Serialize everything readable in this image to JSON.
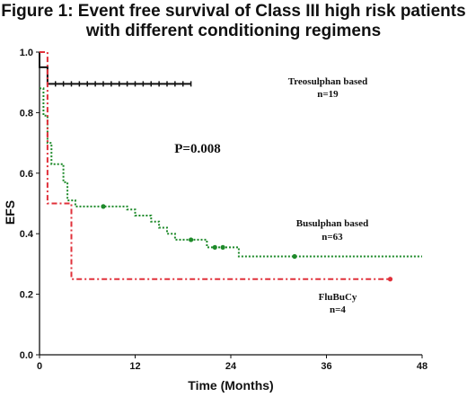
{
  "title_lines": [
    "Figure 1: Event free survival of Class III high risk patients",
    "with different conditioning regimens"
  ],
  "chart_data": {
    "type": "line",
    "title": "Figure 1: Event free survival of Class III high risk patients with different conditioning regimens",
    "xlabel": "Time (Months)",
    "ylabel": "EFS",
    "xlim": [
      0,
      48
    ],
    "ylim": [
      0,
      1.0
    ],
    "x_ticks": [
      0,
      12,
      24,
      36,
      48
    ],
    "y_ticks": [
      0.0,
      0.2,
      0.4,
      0.6,
      0.8,
      1.0
    ],
    "x_tick_labels": [
      "0",
      "12",
      "24",
      "36",
      "48"
    ],
    "y_tick_labels": [
      "0.0",
      "0.2",
      "0.4",
      "0.6",
      "0.8",
      "1.0"
    ],
    "grid": false,
    "p_value_text": "P=0.008",
    "series": [
      {
        "name": "Treosulphan based",
        "n_label": "n=19",
        "color": "#111111",
        "dash": "solid",
        "steps": [
          [
            0,
            1.0
          ],
          [
            0,
            0.95
          ],
          [
            1.0,
            0.95
          ],
          [
            1.0,
            0.895
          ],
          [
            19,
            0.895
          ]
        ],
        "censors": [
          [
            2,
            0.895
          ],
          [
            3,
            0.895
          ],
          [
            4,
            0.895
          ],
          [
            5,
            0.895
          ],
          [
            6,
            0.895
          ],
          [
            7,
            0.895
          ],
          [
            8,
            0.895
          ],
          [
            9,
            0.895
          ],
          [
            10,
            0.895
          ],
          [
            11,
            0.895
          ],
          [
            12,
            0.895
          ],
          [
            13,
            0.895
          ],
          [
            14,
            0.895
          ],
          [
            15,
            0.895
          ],
          [
            16,
            0.895
          ],
          [
            17,
            0.895
          ],
          [
            18,
            0.895
          ],
          [
            19,
            0.895
          ]
        ]
      },
      {
        "name": "Busulphan based",
        "n_label": "n=63",
        "color": "#1e8a2a",
        "dash": "dotted",
        "steps": [
          [
            0,
            0.88
          ],
          [
            0.5,
            0.88
          ],
          [
            0.5,
            0.79
          ],
          [
            1.0,
            0.79
          ],
          [
            1.0,
            0.7
          ],
          [
            1.5,
            0.7
          ],
          [
            1.5,
            0.63
          ],
          [
            3.0,
            0.63
          ],
          [
            3.0,
            0.57
          ],
          [
            3.5,
            0.57
          ],
          [
            3.5,
            0.51
          ],
          [
            4.5,
            0.51
          ],
          [
            4.5,
            0.49
          ],
          [
            11,
            0.49
          ],
          [
            11,
            0.48
          ],
          [
            12,
            0.48
          ],
          [
            12,
            0.46
          ],
          [
            14,
            0.46
          ],
          [
            14,
            0.44
          ],
          [
            15,
            0.44
          ],
          [
            15,
            0.42
          ],
          [
            16,
            0.42
          ],
          [
            16,
            0.4
          ],
          [
            17,
            0.4
          ],
          [
            17,
            0.38
          ],
          [
            21,
            0.38
          ],
          [
            21,
            0.355
          ],
          [
            25,
            0.355
          ],
          [
            25,
            0.325
          ],
          [
            48,
            0.325
          ]
        ],
        "censors": [
          [
            8,
            0.49
          ],
          [
            19,
            0.38
          ],
          [
            22,
            0.355
          ],
          [
            23,
            0.355
          ],
          [
            32,
            0.325
          ]
        ]
      },
      {
        "name": "FluBuCy",
        "n_label": "n=4",
        "color": "#e0303a",
        "dash": "dashdot",
        "steps": [
          [
            0,
            1.0
          ],
          [
            1.0,
            1.0
          ],
          [
            1.0,
            0.5
          ],
          [
            4.0,
            0.5
          ],
          [
            4.0,
            0.25
          ],
          [
            44,
            0.25
          ]
        ],
        "censors": [
          [
            44,
            0.25
          ]
        ]
      }
    ]
  }
}
